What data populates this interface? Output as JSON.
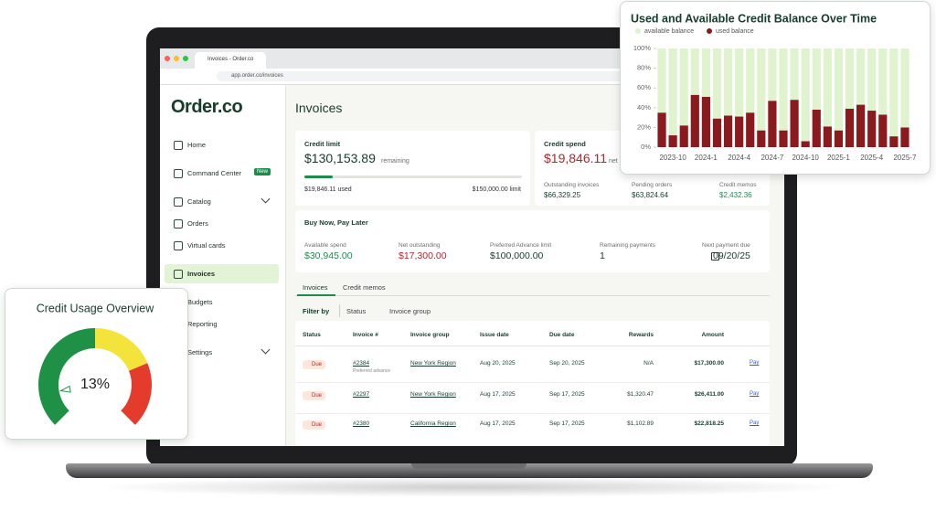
{
  "browser": {
    "tab_title": "Invoices - Order.co",
    "url": "app.order.co/invoices"
  },
  "sidebar": {
    "logo": "Order.co",
    "nav": [
      "Home",
      "Command Center",
      "Catalog",
      "Orders",
      "Virtual cards",
      "Invoices",
      "Budgets",
      "Reporting",
      "Settings"
    ],
    "badge": "New"
  },
  "main": {
    "title": "Invoices",
    "credit_limit": {
      "label": "Credit limit",
      "amount": "$130,153.89",
      "note": "remaining",
      "used": "$19,846.11 used",
      "limit": "$150,000.00 limit"
    },
    "credit_spend": {
      "label": "Credit spend",
      "amount": "$19,846.11",
      "note": "net",
      "stats": [
        {
          "label": "Outstanding invoices",
          "value": "$66,329.25"
        },
        {
          "label": "Pending orders",
          "value": "$63,824.64"
        },
        {
          "label": "Credit memos",
          "value": "$2,432.36"
        }
      ]
    },
    "bnpl": {
      "title": "Buy Now, Pay Later",
      "stats": [
        {
          "label": "Available spend",
          "value": "$30,945.00"
        },
        {
          "label": "Net outstanding",
          "value": "$17,300.00"
        },
        {
          "label": "Preferred Advance limit",
          "value": "$100,000.00"
        },
        {
          "label": "Remaining payments",
          "value": "1"
        },
        {
          "label": "Next payment due",
          "value": "09/20/25"
        }
      ]
    },
    "tabs": [
      "Invoices",
      "Credit memos"
    ],
    "filter": {
      "label": "Filter by",
      "options": [
        "Status",
        "Invoice group"
      ]
    },
    "table": {
      "headers": [
        "Status",
        "Invoice #",
        "Invoice group",
        "Issue date",
        "Due date",
        "Rewards",
        "Amount"
      ],
      "rows": [
        {
          "status": "Due",
          "invoice": "#2384",
          "invoice_note": "Preferred advance",
          "group": "New York Region",
          "issue": "Aug 20, 2025",
          "due": "Sep 20, 2025",
          "rewards": "N/A",
          "amount": "$17,300.00",
          "action": "Pay"
        },
        {
          "status": "Due",
          "invoice": "#2297",
          "group": "New York Region",
          "issue": "Aug 17, 2025",
          "due": "Sep 17, 2025",
          "rewards": "$1,320.47",
          "amount": "$26,411.00",
          "action": "Pay"
        },
        {
          "status": "Due",
          "invoice": "#2380",
          "group": "California Region",
          "issue": "Aug 17, 2025",
          "due": "Sep 17, 2025",
          "rewards": "$1,102.89",
          "amount": "$22,818.25",
          "action": "Pay"
        }
      ]
    }
  },
  "chart_data": [
    {
      "type": "bar",
      "stacked": true,
      "title": "Used and Available Credit Balance Over Time",
      "categories": [
        null,
        "2023-10",
        null,
        null,
        "2024-1",
        null,
        null,
        "2024-4",
        null,
        null,
        "2024-7",
        null,
        null,
        "2024-10",
        null,
        null,
        "2025-1",
        null,
        null,
        "2025-4",
        null,
        null,
        "2025-7"
      ],
      "series": [
        {
          "name": "available balance",
          "color": "#dff3cf",
          "values": [
            65,
            88,
            78,
            47,
            49,
            71,
            68,
            69,
            65,
            83,
            53,
            83,
            52,
            94,
            62,
            79,
            83,
            61,
            57,
            63,
            67,
            89,
            80
          ]
        },
        {
          "name": "used balance",
          "color": "#8b1a1f",
          "values": [
            35,
            12,
            22,
            53,
            51,
            29,
            32,
            31,
            35,
            17,
            47,
            17,
            48,
            6,
            38,
            21,
            17,
            39,
            43,
            37,
            33,
            11,
            20
          ]
        }
      ],
      "ylim": [
        0,
        100
      ],
      "yticks": [
        {
          "value": 0,
          "label": "0%"
        },
        {
          "value": 20,
          "label": "20%"
        },
        {
          "value": 40,
          "label": "40%"
        },
        {
          "value": 60,
          "label": "60%"
        },
        {
          "value": 80,
          "label": "80%"
        },
        {
          "value": 100,
          "label": "100%"
        }
      ],
      "grid": false
    },
    {
      "type": "gauge",
      "title": "Credit Usage Overview",
      "values": [
        13
      ],
      "value_labels": [
        "13%"
      ],
      "ylim": [
        0,
        100
      ]
    }
  ]
}
